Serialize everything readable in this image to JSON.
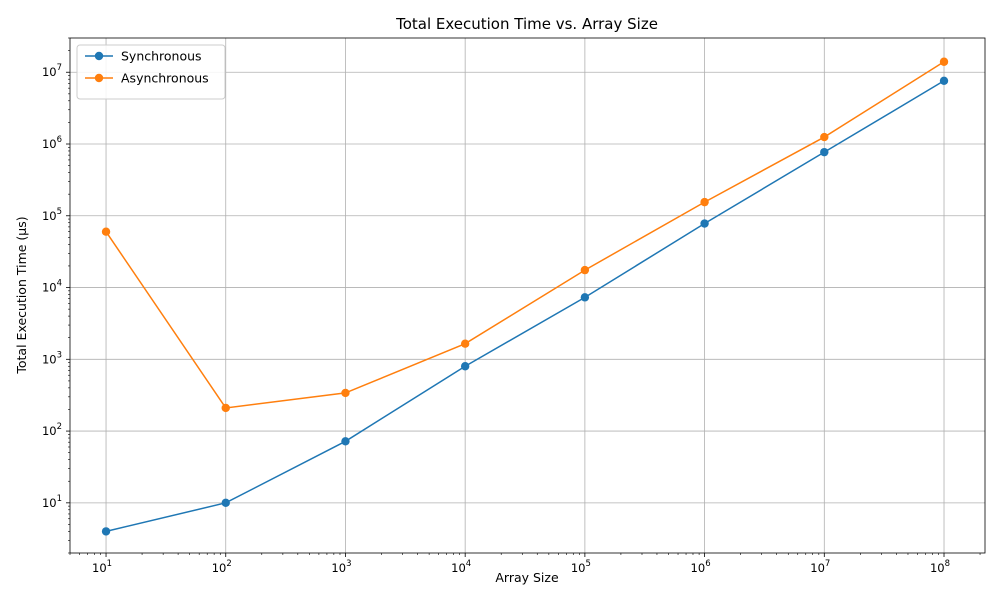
{
  "chart_data": {
    "type": "line",
    "title": "Total Execution Time vs. Array Size",
    "xlabel": "Array Size",
    "ylabel": "Total Execution Time (µs)",
    "xscale": "log",
    "yscale": "log",
    "xlim": [
      5,
      220000000
    ],
    "ylim": [
      2,
      30000000
    ],
    "grid": true,
    "legend_position": "top-left",
    "x": [
      10,
      100,
      1000,
      10000,
      100000,
      1000000,
      10000000,
      100000000
    ],
    "x_ticks": [
      {
        "value": 10,
        "base": "10",
        "exp": "1"
      },
      {
        "value": 100,
        "base": "10",
        "exp": "2"
      },
      {
        "value": 1000,
        "base": "10",
        "exp": "3"
      },
      {
        "value": 10000,
        "base": "10",
        "exp": "4"
      },
      {
        "value": 100000,
        "base": "10",
        "exp": "5"
      },
      {
        "value": 1000000,
        "base": "10",
        "exp": "6"
      },
      {
        "value": 10000000,
        "base": "10",
        "exp": "7"
      },
      {
        "value": 100000000,
        "base": "10",
        "exp": "8"
      }
    ],
    "y_ticks": [
      {
        "value": 10,
        "base": "10",
        "exp": "1"
      },
      {
        "value": 100,
        "base": "10",
        "exp": "2"
      },
      {
        "value": 1000,
        "base": "10",
        "exp": "3"
      },
      {
        "value": 10000,
        "base": "10",
        "exp": "4"
      },
      {
        "value": 100000,
        "base": "10",
        "exp": "5"
      },
      {
        "value": 1000000,
        "base": "10",
        "exp": "6"
      },
      {
        "value": 10000000,
        "base": "10",
        "exp": "7"
      }
    ],
    "series": [
      {
        "name": "Synchronous",
        "color": "#1f77b4",
        "values": [
          4,
          10,
          72,
          800,
          7300,
          78000,
          770000,
          7600000
        ]
      },
      {
        "name": "Asynchronous",
        "color": "#ff7f0e",
        "values": [
          60000,
          210,
          340,
          1650,
          17500,
          155000,
          1250000,
          14000000
        ]
      }
    ]
  }
}
